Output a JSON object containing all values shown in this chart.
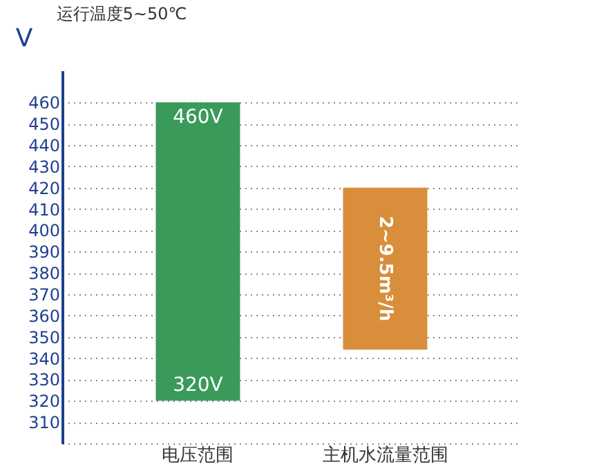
{
  "chart_data": {
    "type": "bar",
    "title": "运行温度5~50℃",
    "ylabel": "V",
    "categories": [
      "电压范围",
      "主机水流量范围"
    ],
    "values": [
      140,
      76
    ],
    "base": [
      320,
      344
    ],
    "colors": [
      "#3a9a5a",
      "#d88e3a"
    ],
    "ylim": [
      300,
      475
    ],
    "yticks": [
      {
        "value": 300,
        "label": null
      },
      310,
      320,
      330,
      340,
      350,
      360,
      370,
      380,
      390,
      400,
      410,
      420,
      430,
      440,
      450,
      460
    ],
    "grid": "y",
    "annotations": [
      {
        "text": "460V",
        "x": "电压范围",
        "y": 460
      },
      {
        "text": "320V",
        "x": "电压范围",
        "y": 320
      },
      "2~9.5m³/h"
    ]
  }
}
